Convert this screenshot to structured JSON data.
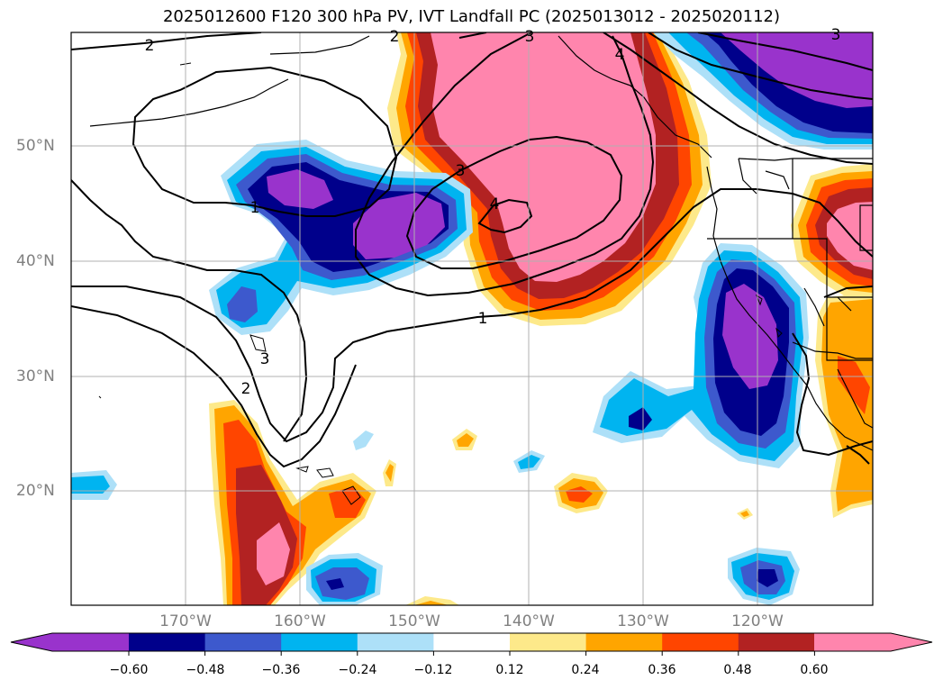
{
  "title": "2025012600 F120 300 hPa PV, IVT Landfall PC (2025013012 - 2025020112)",
  "map": {
    "projection": "PlateCarree",
    "lon_range": [
      "180°",
      "110°W"
    ],
    "lat_range": [
      "10°N",
      "60°N"
    ],
    "lat_labels": [
      "50°N",
      "40°N",
      "30°N",
      "20°N"
    ],
    "lon_labels": [
      "170°W",
      "160°W",
      "150°W",
      "140°W",
      "130°W",
      "120°W"
    ],
    "contour_labels": [
      "2",
      "1",
      "3",
      "4",
      "1",
      "3",
      "2",
      "3",
      "4",
      "3",
      "2"
    ]
  },
  "colorbar": {
    "extend": "both",
    "tick_labels": [
      "−0.60",
      "−0.48",
      "−0.36",
      "−0.24",
      "−0.12",
      "0.12",
      "0.24",
      "0.36",
      "0.48",
      "0.60"
    ],
    "colors": [
      "#9933cc",
      "#00008b",
      "#3d59cd",
      "#00b4f0",
      "#ade0f8",
      "#ffffff",
      "#fde98a",
      "#ffa500",
      "#ff4500",
      "#b22222",
      "#ff85ad"
    ]
  }
}
